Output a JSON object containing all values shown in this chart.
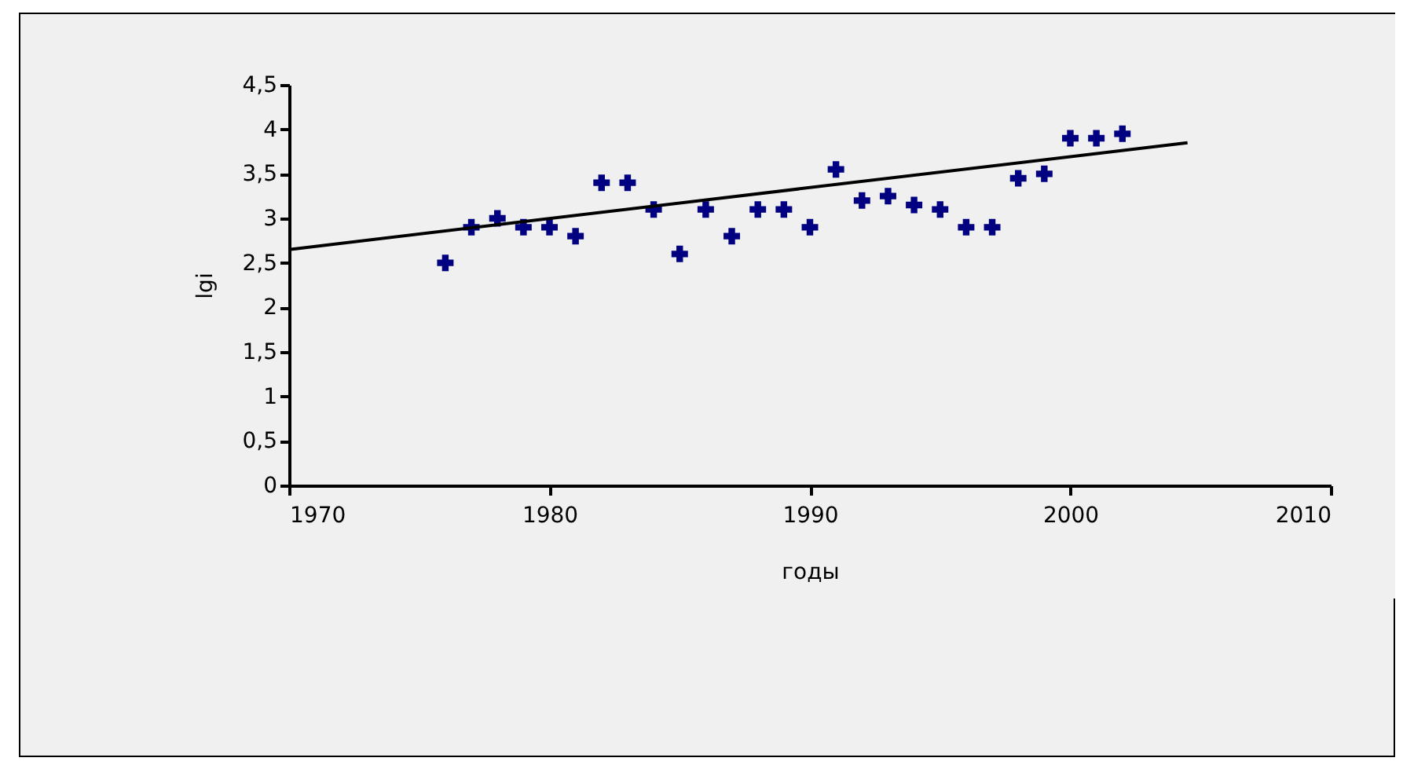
{
  "chart_data": {
    "type": "scatter",
    "xlabel": "годы",
    "ylabel": "lgi",
    "xlim": [
      1970,
      2010
    ],
    "xticks": [
      1970,
      1980,
      1990,
      2000,
      2010
    ],
    "ylim": [
      0,
      4.5
    ],
    "yticks": [
      0,
      {
        "value": 0.5,
        "label": "0,5"
      },
      1,
      {
        "value": 1.5,
        "label": "1,5"
      },
      2,
      {
        "value": 2.5,
        "label": "2,5"
      },
      3,
      {
        "value": 3.5,
        "label": "3,5"
      },
      4,
      {
        "value": 4.5,
        "label": "4,5"
      }
    ],
    "grid": false,
    "series": [
      {
        "marker": "cross",
        "color": "#000080",
        "x": [
          1976,
          1977,
          1978,
          1979,
          1980,
          1981,
          1982,
          1983,
          1984,
          1985,
          1986,
          1987,
          1988,
          1989,
          1990,
          1991,
          1992,
          1993,
          1994,
          1995,
          1996,
          1997,
          1998,
          1999,
          2000,
          2001,
          2002
        ],
        "values": [
          2.5,
          2.9,
          3.0,
          2.9,
          2.9,
          2.8,
          3.4,
          3.4,
          3.1,
          2.6,
          3.1,
          2.8,
          3.1,
          3.1,
          2.9,
          3.55,
          3.2,
          3.25,
          3.15,
          3.1,
          2.9,
          2.9,
          3.45,
          3.5,
          3.9,
          3.9,
          3.95
        ]
      },
      {
        "type": "line",
        "marker": "none",
        "color": "#000000",
        "x": [
          1970,
          2004.5
        ],
        "values": [
          2.65,
          3.85
        ]
      }
    ]
  }
}
